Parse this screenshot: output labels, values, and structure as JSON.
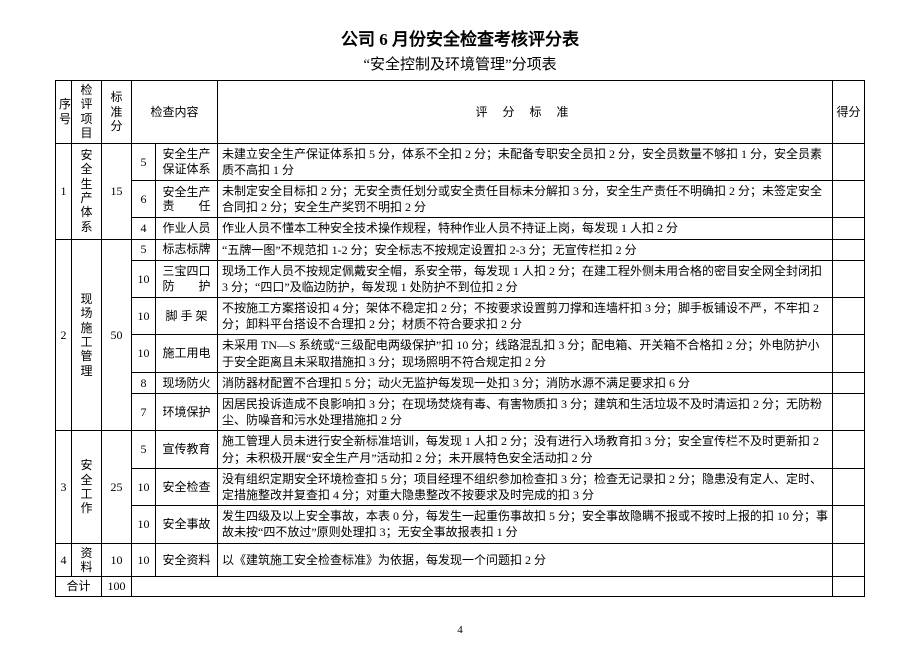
{
  "title": "公司 6 月份安全检查考核评分表",
  "subtitle": "“安全控制及环境管理”分项表",
  "header": {
    "seq": "序号",
    "project": "检评项目",
    "std": "标准分",
    "content": "检查内容",
    "criteria": "评 分 标 准",
    "score": "得分"
  },
  "groups": [
    {
      "seq": "1",
      "project": "安全生产体系",
      "std": "15",
      "rows": [
        {
          "sub": "5",
          "name": "安全生产保证体系",
          "desc": "未建立安全生产保证体系扣 5 分，体系不全扣 2 分；未配备专职安全员扣 2 分，安全员数量不够扣 1 分，安全员素质不高扣 1 分"
        },
        {
          "sub": "6",
          "name": "安全生产责　　任",
          "desc": "未制定安全目标扣 2 分；无安全责任划分或安全责任目标未分解扣 3 分，安全生产责任不明确扣 2 分；未签定安全合同扣 2 分；安全生产奖罚不明扣 2 分"
        },
        {
          "sub": "4",
          "name": "作业人员",
          "desc": "作业人员不懂本工种安全技术操作规程，特种作业人员不持证上岗，每发现 1 人扣 2 分"
        }
      ]
    },
    {
      "seq": "2",
      "project": "现场施工管理",
      "std": "50",
      "rows": [
        {
          "sub": "5",
          "name": "标志标牌",
          "desc": "“五牌一图”不规范扣 1-2 分；安全标志不按规定设置扣 2-3 分；无宣传栏扣 2 分"
        },
        {
          "sub": "10",
          "name": "三宝四口防　　护",
          "desc": "现场工作人员不按规定佩戴安全帽，系安全带，每发现 1 人扣 2 分；在建工程外侧未用合格的密目安全网全封闭扣 3 分；“四口”及临边防护，每发现 1 处防护不到位扣 2 分"
        },
        {
          "sub": "10",
          "name": "脚 手 架",
          "desc": "不按施工方案搭设扣 4 分；架体不稳定扣 2 分；不按要求设置剪刀撑和连墙杆扣 3 分；脚手板铺设不严，不牢扣 2 分；卸料平台搭设不合理扣 2 分；材质不符合要求扣 2 分"
        },
        {
          "sub": "10",
          "name": "施工用电",
          "desc": "未采用 TN—S 系统或“三级配电两级保护”扣 10 分；线路混乱扣 3 分；配电箱、开关箱不合格扣 2 分；外电防护小于安全距离且未采取措施扣 3 分；现场照明不符合规定扣 2 分"
        },
        {
          "sub": "8",
          "name": "现场防火",
          "desc": "消防器材配置不合理扣 5 分；动火无监护每发现一处扣 3 分；消防水源不满足要求扣 6 分"
        },
        {
          "sub": "7",
          "name": "环境保护",
          "desc": "因居民投诉造成不良影响扣 3 分；在现场焚烧有毒、有害物质扣 3 分；建筑和生活垃圾不及时清运扣 2 分；无防粉尘、防噪音和污水处理措施扣 2 分"
        }
      ]
    },
    {
      "seq": "3",
      "project": "安全工作",
      "std": "25",
      "rows": [
        {
          "sub": "5",
          "name": "宣传教育",
          "desc": "施工管理人员未进行安全新标准培训，每发现 1 人扣 2 分；没有进行入场教育扣 3 分；安全宣传栏不及时更新扣 2 分；未积极开展“安全生产月”活动扣 2 分；未开展特色安全活动扣 2 分"
        },
        {
          "sub": "10",
          "name": "安全检查",
          "desc": "没有组织定期安全环境检查扣 5 分；项目经理不组织参加检查扣 3 分；检查无记录扣 2 分；隐患没有定人、定时、定措施整改并复查扣 4 分；对重大隐患整改不按要求及时完成的扣 3 分"
        },
        {
          "sub": "10",
          "name": "安全事故",
          "desc": "发生四级及以上安全事故，本表 0 分，每发生一起重伤事故扣 5 分；安全事故隐瞒不报或不按时上报的扣 10 分；事故未按“四不放过”原则处理扣 3；无安全事故报表扣 1 分"
        }
      ]
    },
    {
      "seq": "4",
      "project": "资料",
      "std": "10",
      "rows": [
        {
          "sub": "10",
          "name": "安全资料",
          "desc": "以《建筑施工安全检查标准》为依据，每发现一个问题扣 2 分"
        }
      ]
    }
  ],
  "total_label": "合计",
  "total_value": "100",
  "page_number": "4"
}
